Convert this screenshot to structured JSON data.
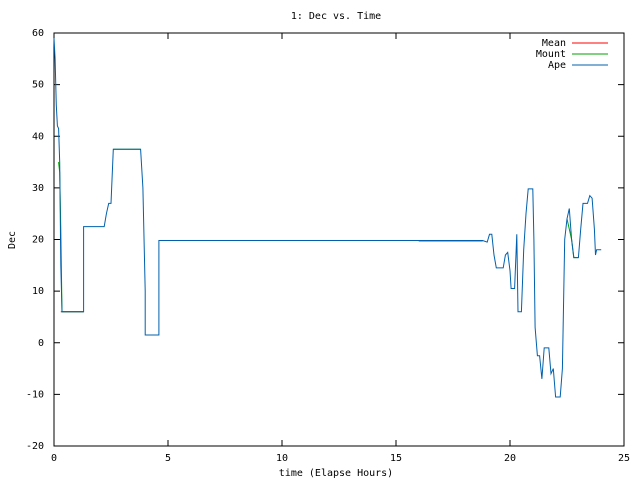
{
  "chart_data": {
    "type": "line",
    "title": "1: Dec vs. Time",
    "x_label": "time (Elapse Hours)",
    "y_label": "Dec",
    "xlim": [
      0,
      25
    ],
    "xticks": [
      0,
      5,
      10,
      15,
      20,
      25
    ],
    "ylim": [
      -20,
      60
    ],
    "yticks": [
      -20,
      -10,
      0,
      10,
      20,
      30,
      40,
      50,
      60
    ],
    "legend": "top-right",
    "series": [
      {
        "name": "Mean",
        "color": "#ff0000",
        "x": [
          0.3,
          1.3,
          null,
          16,
          18.8
        ],
        "values": [
          6,
          6,
          null,
          19.7,
          19.7
        ]
      },
      {
        "name": "Mount",
        "color": "#00a000",
        "x": [
          0.2,
          0.25,
          0.3,
          0.35,
          1.3,
          null,
          2.6,
          3.8,
          null,
          16,
          18.8,
          null,
          22.5,
          22.7,
          22.8,
          23.0
        ],
        "values": [
          35,
          33,
          22,
          6,
          6,
          null,
          37.5,
          37.5,
          null,
          19.7,
          19.7,
          null,
          24,
          20,
          16.5,
          16.5
        ]
      },
      {
        "name": "Ape",
        "color": "#0060ad",
        "x": [
          0.0,
          0.05,
          0.1,
          0.15,
          0.2,
          0.25,
          0.3,
          0.35,
          1.3,
          1.3,
          2.2,
          2.3,
          2.4,
          2.5,
          2.6,
          3.8,
          3.9,
          4.0,
          4.0,
          4.6,
          4.6,
          18.8,
          19.0,
          19.1,
          19.2,
          19.3,
          19.4,
          19.7,
          19.8,
          19.9,
          20.0,
          20.05,
          20.2,
          20.3,
          20.35,
          20.5,
          20.6,
          20.7,
          20.8,
          21.0,
          21.05,
          21.1,
          21.2,
          21.3,
          21.4,
          21.5,
          21.7,
          21.8,
          21.9,
          22.0,
          22.2,
          22.3,
          22.4,
          22.5,
          22.6,
          22.7,
          22.8,
          23.0,
          23.1,
          23.2,
          23.4,
          23.5,
          23.6,
          23.7,
          23.75,
          23.8,
          24.0
        ],
        "values": [
          59,
          55,
          46,
          42,
          41.5,
          35,
          15,
          6,
          6,
          22.5,
          22.5,
          25,
          27,
          27,
          37.5,
          37.5,
          30,
          10,
          1.5,
          1.5,
          19.8,
          19.8,
          19.5,
          21,
          21,
          17,
          14.5,
          14.5,
          17,
          17.5,
          14,
          10.5,
          10.5,
          21,
          6,
          6,
          18,
          25,
          29.8,
          29.8,
          20,
          3,
          -2.5,
          -2.5,
          -7,
          -1,
          -1,
          -6,
          -5,
          -10.5,
          -10.5,
          -5,
          20,
          24,
          26,
          20,
          16.5,
          16.5,
          22,
          27,
          27,
          28.5,
          28,
          22,
          17,
          18,
          18
        ]
      }
    ]
  }
}
